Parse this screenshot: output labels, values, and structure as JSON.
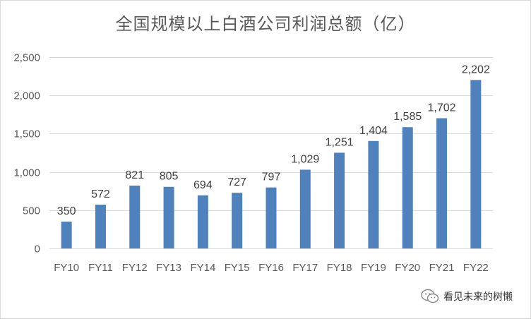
{
  "chart_data": {
    "type": "bar",
    "title": "全国规模以上白酒公司利润总额（亿）",
    "categories": [
      "FY10",
      "FY11",
      "FY12",
      "FY13",
      "FY14",
      "FY15",
      "FY16",
      "FY17",
      "FY18",
      "FY19",
      "FY20",
      "FY21",
      "FY22"
    ],
    "values": [
      350,
      572,
      821,
      805,
      694,
      727,
      797,
      1029,
      1251,
      1404,
      1585,
      1702,
      2202
    ],
    "data_labels": [
      "350",
      "572",
      "821",
      "805",
      "694",
      "727",
      "797",
      "1,029",
      "1,251",
      "1,404",
      "1,585",
      "1,702",
      "2,202"
    ],
    "ylim": [
      0,
      2500
    ],
    "yticks": [
      0,
      500,
      1000,
      1500,
      2000,
      2500
    ],
    "ytick_labels": [
      "0",
      "500",
      "1,000",
      "1,500",
      "2,000",
      "2,500"
    ],
    "xlabel": "",
    "ylabel": "",
    "grid": true,
    "legend": "none",
    "bar_color": "#4f81bd",
    "grid_color": "#d9d9d9"
  },
  "watermark": {
    "text": "看见未来的树懒",
    "icon": "wechat-icon"
  }
}
